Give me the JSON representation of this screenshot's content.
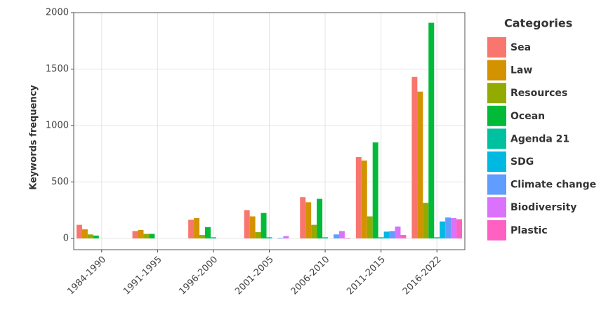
{
  "chart_data": {
    "type": "bar",
    "y_label": "Keywords frequency",
    "legend_title": "Categories",
    "categories": [
      "1984-1990",
      "1991-1995",
      "1996-2000",
      "2001-2005",
      "2006-2010",
      "2011-2015",
      "2016-2022"
    ],
    "series": [
      {
        "name": "Sea",
        "color": "#F8766D",
        "values": [
          120,
          65,
          165,
          250,
          365,
          720,
          1430
        ]
      },
      {
        "name": "Law",
        "color": "#D39200",
        "values": [
          80,
          75,
          180,
          195,
          320,
          690,
          1300
        ]
      },
      {
        "name": "Resources",
        "color": "#93AA00",
        "values": [
          35,
          40,
          30,
          55,
          120,
          195,
          315
        ]
      },
      {
        "name": "Ocean",
        "color": "#00BA38",
        "values": [
          25,
          40,
          100,
          225,
          350,
          850,
          1910
        ]
      },
      {
        "name": "Agenda 21",
        "color": "#00C19F",
        "values": [
          0,
          0,
          10,
          10,
          10,
          10,
          10
        ]
      },
      {
        "name": "SDG",
        "color": "#00B9E3",
        "values": [
          0,
          0,
          0,
          0,
          0,
          60,
          150
        ]
      },
      {
        "name": "Climate change",
        "color": "#619CFF",
        "values": [
          0,
          0,
          0,
          5,
          35,
          65,
          185
        ]
      },
      {
        "name": "Biodiversity",
        "color": "#DB72FB",
        "values": [
          0,
          0,
          0,
          20,
          65,
          105,
          180
        ]
      },
      {
        "name": "Plastic",
        "color": "#FF61C3",
        "values": [
          0,
          0,
          0,
          0,
          5,
          30,
          170
        ]
      }
    ],
    "ylim": [
      -100,
      2000
    ],
    "yticks": [
      0,
      500,
      1000,
      1500,
      2000
    ],
    "grid": true,
    "legend": "right"
  }
}
